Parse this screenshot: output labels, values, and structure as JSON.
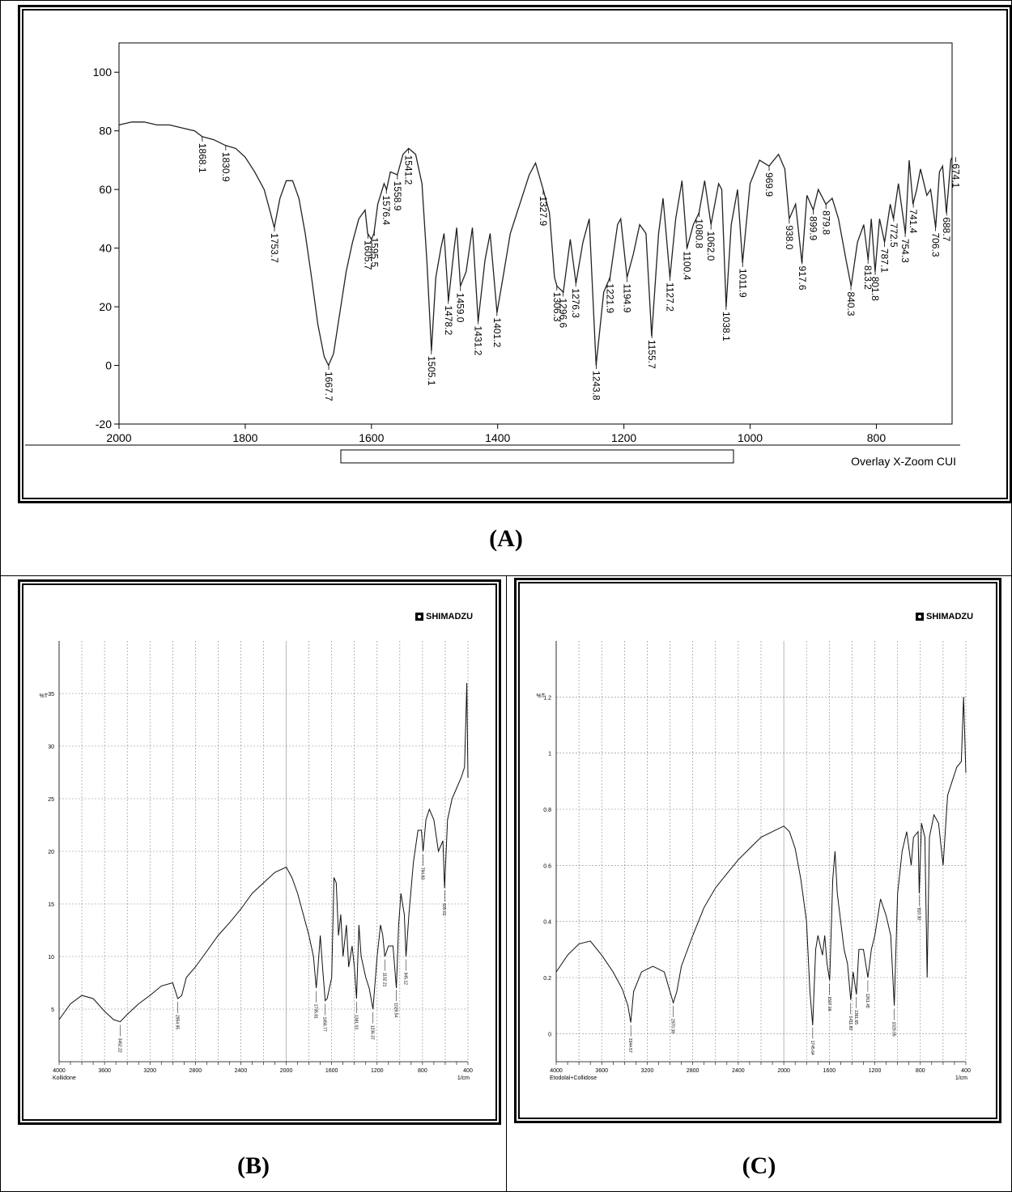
{
  "panels": {
    "a": {
      "caption": "(A)"
    },
    "b": {
      "caption": "(B)",
      "brand": "SHIMADZU"
    },
    "c": {
      "caption": "(C)",
      "brand": "SHIMADZU"
    }
  },
  "chart_data": [
    {
      "id": "A",
      "type": "line",
      "title": "",
      "xlim": [
        2000,
        680
      ],
      "ylim": [
        -20,
        110
      ],
      "x_ticks": [
        2000,
        1800,
        1600,
        1400,
        1200,
        1000,
        800
      ],
      "y_ticks": [
        -20,
        0,
        20,
        40,
        60,
        80,
        100
      ],
      "note": "Overlay X-Zoom CUI",
      "peak_labels": [
        "1868.1",
        "1830.9",
        "1753.7",
        "1667.7",
        "1605.7",
        "1595.5",
        "1576.4",
        "1558.9",
        "1541.2",
        "1505.1",
        "1478.2",
        "1459.0",
        "1431.2",
        "1401.2",
        "1327.9",
        "1306.3",
        "1296.6",
        "1276.3",
        "1243.8",
        "1221.9",
        "1194.9",
        "1155.7",
        "1127.2",
        "1100.4",
        "1080.8",
        "1062.0",
        "1038.1",
        "1011.9",
        "969.9",
        "938.0",
        "917.6",
        "899.9",
        "879.8",
        "840.3",
        "813.2",
        "801.8",
        "787.1",
        "772.5",
        "754.3",
        "741.4",
        "706.3",
        "688.7",
        "674.1"
      ],
      "points": [
        [
          2000,
          82
        ],
        [
          1980,
          83
        ],
        [
          1960,
          83
        ],
        [
          1940,
          82
        ],
        [
          1920,
          82
        ],
        [
          1900,
          81
        ],
        [
          1880,
          80
        ],
        [
          1868,
          78
        ],
        [
          1850,
          77
        ],
        [
          1831,
          75
        ],
        [
          1815,
          74
        ],
        [
          1800,
          71
        ],
        [
          1785,
          66
        ],
        [
          1770,
          60
        ],
        [
          1760,
          52
        ],
        [
          1754,
          47
        ],
        [
          1745,
          57
        ],
        [
          1735,
          63
        ],
        [
          1725,
          63
        ],
        [
          1715,
          57
        ],
        [
          1705,
          45
        ],
        [
          1695,
          30
        ],
        [
          1685,
          14
        ],
        [
          1675,
          3
        ],
        [
          1668,
          0
        ],
        [
          1660,
          4
        ],
        [
          1650,
          18
        ],
        [
          1640,
          32
        ],
        [
          1630,
          42
        ],
        [
          1620,
          50
        ],
        [
          1610,
          53
        ],
        [
          1606,
          45
        ],
        [
          1600,
          43
        ],
        [
          1596,
          45
        ],
        [
          1590,
          55
        ],
        [
          1580,
          62
        ],
        [
          1576,
          60
        ],
        [
          1570,
          66
        ],
        [
          1559,
          65
        ],
        [
          1550,
          72
        ],
        [
          1541,
          74
        ],
        [
          1530,
          72
        ],
        [
          1520,
          62
        ],
        [
          1512,
          35
        ],
        [
          1505,
          5
        ],
        [
          1498,
          30
        ],
        [
          1490,
          40
        ],
        [
          1485,
          45
        ],
        [
          1478,
          22
        ],
        [
          1470,
          38
        ],
        [
          1465,
          47
        ],
        [
          1459,
          27
        ],
        [
          1450,
          32
        ],
        [
          1440,
          47
        ],
        [
          1431,
          15
        ],
        [
          1420,
          36
        ],
        [
          1412,
          45
        ],
        [
          1401,
          18
        ],
        [
          1390,
          32
        ],
        [
          1380,
          45
        ],
        [
          1365,
          55
        ],
        [
          1350,
          65
        ],
        [
          1340,
          69
        ],
        [
          1328,
          60
        ],
        [
          1318,
          52
        ],
        [
          1310,
          30
        ],
        [
          1306,
          27
        ],
        [
          1296,
          25
        ],
        [
          1285,
          43
        ],
        [
          1276,
          28
        ],
        [
          1265,
          42
        ],
        [
          1255,
          50
        ],
        [
          1244,
          0
        ],
        [
          1232,
          25
        ],
        [
          1222,
          30
        ],
        [
          1210,
          48
        ],
        [
          1205,
          50
        ],
        [
          1195,
          30
        ],
        [
          1185,
          38
        ],
        [
          1175,
          48
        ],
        [
          1165,
          45
        ],
        [
          1156,
          10
        ],
        [
          1145,
          45
        ],
        [
          1138,
          57
        ],
        [
          1127,
          30
        ],
        [
          1118,
          50
        ],
        [
          1108,
          63
        ],
        [
          1100,
          40
        ],
        [
          1090,
          48
        ],
        [
          1081,
          52
        ],
        [
          1072,
          63
        ],
        [
          1062,
          48
        ],
        [
          1050,
          62
        ],
        [
          1045,
          60
        ],
        [
          1038,
          20
        ],
        [
          1030,
          48
        ],
        [
          1020,
          60
        ],
        [
          1012,
          35
        ],
        [
          1000,
          62
        ],
        [
          985,
          70
        ],
        [
          970,
          68
        ],
        [
          955,
          72
        ],
        [
          945,
          67
        ],
        [
          938,
          50
        ],
        [
          928,
          55
        ],
        [
          918,
          35
        ],
        [
          910,
          58
        ],
        [
          900,
          53
        ],
        [
          892,
          60
        ],
        [
          880,
          55
        ],
        [
          870,
          57
        ],
        [
          860,
          50
        ],
        [
          848,
          36
        ],
        [
          840,
          27
        ],
        [
          830,
          42
        ],
        [
          820,
          48
        ],
        [
          813,
          36
        ],
        [
          808,
          50
        ],
        [
          802,
          32
        ],
        [
          795,
          50
        ],
        [
          787,
          42
        ],
        [
          778,
          55
        ],
        [
          773,
          50
        ],
        [
          765,
          62
        ],
        [
          754,
          45
        ],
        [
          748,
          70
        ],
        [
          742,
          55
        ],
        [
          736,
          60
        ],
        [
          730,
          67
        ],
        [
          720,
          58
        ],
        [
          714,
          60
        ],
        [
          706,
          47
        ],
        [
          700,
          66
        ],
        [
          695,
          68
        ],
        [
          689,
          52
        ],
        [
          682,
          70
        ],
        [
          680,
          71
        ]
      ]
    },
    {
      "id": "B",
      "type": "line",
      "ylabel": "%T",
      "xlabel": "1/cm",
      "sample_label": "Kollidone",
      "xlim": [
        4000,
        400
      ],
      "ylim": [
        0,
        40
      ],
      "x_ticks": [
        4000,
        3600,
        3200,
        2800,
        2400,
        2000,
        1600,
        1200,
        800,
        400
      ],
      "y_ticks": [
        5,
        10,
        15,
        20,
        25,
        30,
        35
      ],
      "peak_labels": [
        "3462.22",
        "2954.95",
        "1735.81",
        "1656.77",
        "1381.03",
        "1236.37",
        "1132.21",
        "1029.54",
        "945.12",
        "794.83",
        "605.61"
      ],
      "points": [
        [
          4000,
          4
        ],
        [
          3900,
          5.5
        ],
        [
          3800,
          6.3
        ],
        [
          3700,
          6
        ],
        [
          3600,
          4.8
        ],
        [
          3520,
          4
        ],
        [
          3462,
          3.8
        ],
        [
          3400,
          4.5
        ],
        [
          3300,
          5.5
        ],
        [
          3200,
          6.3
        ],
        [
          3100,
          7.2
        ],
        [
          3000,
          7.5
        ],
        [
          2955,
          6
        ],
        [
          2920,
          6.3
        ],
        [
          2880,
          8
        ],
        [
          2800,
          9
        ],
        [
          2700,
          10.5
        ],
        [
          2600,
          12
        ],
        [
          2500,
          13.2
        ],
        [
          2400,
          14.5
        ],
        [
          2300,
          16
        ],
        [
          2200,
          17
        ],
        [
          2100,
          18
        ],
        [
          2000,
          18.5
        ],
        [
          1950,
          17.5
        ],
        [
          1900,
          16
        ],
        [
          1850,
          14
        ],
        [
          1800,
          12
        ],
        [
          1760,
          10
        ],
        [
          1736,
          7
        ],
        [
          1720,
          9
        ],
        [
          1700,
          12
        ],
        [
          1680,
          9
        ],
        [
          1657,
          5.8
        ],
        [
          1640,
          6
        ],
        [
          1600,
          8
        ],
        [
          1580,
          17.5
        ],
        [
          1560,
          17
        ],
        [
          1540,
          12
        ],
        [
          1520,
          14
        ],
        [
          1500,
          10
        ],
        [
          1470,
          13
        ],
        [
          1450,
          9
        ],
        [
          1420,
          11
        ],
        [
          1400,
          9
        ],
        [
          1381,
          6
        ],
        [
          1360,
          13
        ],
        [
          1340,
          10
        ],
        [
          1300,
          8
        ],
        [
          1270,
          7
        ],
        [
          1236,
          5
        ],
        [
          1200,
          10
        ],
        [
          1170,
          13
        ],
        [
          1150,
          12
        ],
        [
          1132,
          10
        ],
        [
          1100,
          11
        ],
        [
          1060,
          11
        ],
        [
          1030,
          7
        ],
        [
          1010,
          13
        ],
        [
          990,
          16
        ],
        [
          960,
          14
        ],
        [
          945,
          10
        ],
        [
          920,
          14
        ],
        [
          880,
          19
        ],
        [
          840,
          22
        ],
        [
          810,
          22
        ],
        [
          795,
          20
        ],
        [
          770,
          23
        ],
        [
          740,
          24
        ],
        [
          700,
          23
        ],
        [
          660,
          20
        ],
        [
          620,
          21
        ],
        [
          606,
          16.5
        ],
        [
          580,
          23
        ],
        [
          540,
          25
        ],
        [
          500,
          26
        ],
        [
          460,
          27
        ],
        [
          430,
          28
        ],
        [
          410,
          36
        ],
        [
          400,
          27
        ]
      ]
    },
    {
      "id": "C",
      "type": "line",
      "ylabel": "%T",
      "xlabel": "1/cm",
      "sample_label": "Etodolal+Collidose",
      "xlim": [
        4000,
        400
      ],
      "ylim": [
        -0.1,
        1.4
      ],
      "x_ticks": [
        4000,
        3600,
        3200,
        2800,
        2400,
        2000,
        1600,
        1200,
        800,
        400
      ],
      "y_ticks": [
        0,
        0.2,
        0.4,
        0.6,
        0.8,
        1,
        1.2
      ],
      "peak_labels": [
        "3344.57",
        "2970.38",
        "1745.64",
        "1597.06",
        "1411.80",
        "1361.65",
        "1261.45",
        "1029.05",
        "810.30"
      ],
      "points": [
        [
          4000,
          0.22
        ],
        [
          3900,
          0.28
        ],
        [
          3800,
          0.32
        ],
        [
          3700,
          0.33
        ],
        [
          3600,
          0.28
        ],
        [
          3500,
          0.22
        ],
        [
          3420,
          0.16
        ],
        [
          3370,
          0.1
        ],
        [
          3345,
          0.04
        ],
        [
          3320,
          0.15
        ],
        [
          3250,
          0.22
        ],
        [
          3150,
          0.24
        ],
        [
          3050,
          0.22
        ],
        [
          2971,
          0.11
        ],
        [
          2940,
          0.15
        ],
        [
          2900,
          0.24
        ],
        [
          2800,
          0.35
        ],
        [
          2700,
          0.45
        ],
        [
          2600,
          0.52
        ],
        [
          2500,
          0.57
        ],
        [
          2400,
          0.62
        ],
        [
          2300,
          0.66
        ],
        [
          2200,
          0.7
        ],
        [
          2100,
          0.72
        ],
        [
          2000,
          0.74
        ],
        [
          1950,
          0.72
        ],
        [
          1900,
          0.66
        ],
        [
          1850,
          0.55
        ],
        [
          1800,
          0.4
        ],
        [
          1770,
          0.15
        ],
        [
          1746,
          0.03
        ],
        [
          1720,
          0.3
        ],
        [
          1700,
          0.35
        ],
        [
          1660,
          0.28
        ],
        [
          1640,
          0.35
        ],
        [
          1620,
          0.25
        ],
        [
          1597,
          0.19
        ],
        [
          1570,
          0.55
        ],
        [
          1550,
          0.65
        ],
        [
          1530,
          0.5
        ],
        [
          1500,
          0.4
        ],
        [
          1470,
          0.3
        ],
        [
          1440,
          0.25
        ],
        [
          1412,
          0.12
        ],
        [
          1390,
          0.22
        ],
        [
          1362,
          0.14
        ],
        [
          1340,
          0.3
        ],
        [
          1300,
          0.3
        ],
        [
          1261,
          0.2
        ],
        [
          1230,
          0.3
        ],
        [
          1200,
          0.35
        ],
        [
          1150,
          0.48
        ],
        [
          1100,
          0.42
        ],
        [
          1060,
          0.35
        ],
        [
          1029,
          0.1
        ],
        [
          1000,
          0.5
        ],
        [
          960,
          0.65
        ],
        [
          920,
          0.72
        ],
        [
          880,
          0.6
        ],
        [
          860,
          0.7
        ],
        [
          820,
          0.72
        ],
        [
          810,
          0.5
        ],
        [
          790,
          0.75
        ],
        [
          760,
          0.7
        ],
        [
          740,
          0.2
        ],
        [
          720,
          0.7
        ],
        [
          680,
          0.78
        ],
        [
          640,
          0.75
        ],
        [
          600,
          0.6
        ],
        [
          560,
          0.85
        ],
        [
          520,
          0.9
        ],
        [
          480,
          0.95
        ],
        [
          440,
          0.97
        ],
        [
          420,
          1.2
        ],
        [
          400,
          0.93
        ]
      ]
    }
  ]
}
